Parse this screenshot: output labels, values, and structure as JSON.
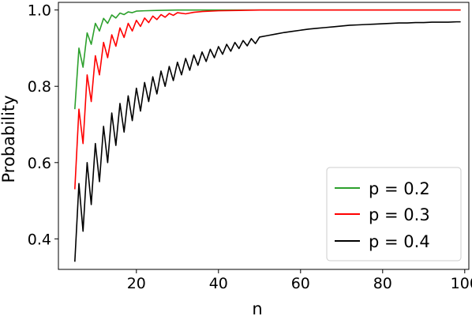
{
  "chart_data": {
    "type": "line",
    "title": "",
    "xlabel": "n",
    "ylabel": "Probability",
    "xlim": [
      1,
      101
    ],
    "ylim": [
      0.32,
      1.02
    ],
    "xticks": [
      20,
      40,
      60,
      80,
      100
    ],
    "yticks": [
      0.4,
      0.6,
      0.8,
      1.0
    ],
    "xtick_labels": [
      "20",
      "40",
      "60",
      "80",
      "100"
    ],
    "ytick_labels": [
      "0.4",
      "0.6",
      "0.8",
      "1.0"
    ],
    "grid": false,
    "legend_position": "lower-right",
    "series": [
      {
        "name": "p = 0.2",
        "color": "#2ca02c",
        "points": [
          [
            5,
            0.74
          ],
          [
            6,
            0.9
          ],
          [
            7,
            0.85
          ],
          [
            8,
            0.94
          ],
          [
            9,
            0.91
          ],
          [
            10,
            0.965
          ],
          [
            11,
            0.945
          ],
          [
            12,
            0.978
          ],
          [
            13,
            0.965
          ],
          [
            14,
            0.987
          ],
          [
            15,
            0.979
          ],
          [
            16,
            0.992
          ],
          [
            17,
            0.988
          ],
          [
            18,
            0.995
          ],
          [
            19,
            0.993
          ],
          [
            20,
            0.997
          ],
          [
            22,
            0.998
          ],
          [
            25,
            0.999
          ],
          [
            30,
            1.0
          ],
          [
            40,
            1.0
          ],
          [
            60,
            1.0
          ],
          [
            80,
            1.0
          ],
          [
            99,
            1.0
          ]
        ]
      },
      {
        "name": "p = 0.3",
        "color": "#ff0000",
        "points": [
          [
            5,
            0.53
          ],
          [
            6,
            0.74
          ],
          [
            7,
            0.65
          ],
          [
            8,
            0.83
          ],
          [
            9,
            0.76
          ],
          [
            10,
            0.88
          ],
          [
            11,
            0.83
          ],
          [
            12,
            0.915
          ],
          [
            13,
            0.875
          ],
          [
            14,
            0.935
          ],
          [
            15,
            0.905
          ],
          [
            16,
            0.953
          ],
          [
            17,
            0.928
          ],
          [
            18,
            0.965
          ],
          [
            19,
            0.945
          ],
          [
            20,
            0.973
          ],
          [
            21,
            0.957
          ],
          [
            22,
            0.979
          ],
          [
            23,
            0.967
          ],
          [
            24,
            0.984
          ],
          [
            25,
            0.975
          ],
          [
            26,
            0.988
          ],
          [
            27,
            0.981
          ],
          [
            28,
            0.991
          ],
          [
            29,
            0.986
          ],
          [
            30,
            0.993
          ],
          [
            32,
            0.99
          ],
          [
            34,
            0.994
          ],
          [
            36,
            0.996
          ],
          [
            40,
            0.998
          ],
          [
            45,
            0.999
          ],
          [
            50,
            1.0
          ],
          [
            60,
            1.0
          ],
          [
            80,
            1.0
          ],
          [
            99,
            1.0
          ]
        ]
      },
      {
        "name": "p = 0.4",
        "color": "#000000",
        "points": [
          [
            5,
            0.34
          ],
          [
            6,
            0.545
          ],
          [
            7,
            0.42
          ],
          [
            8,
            0.6
          ],
          [
            9,
            0.49
          ],
          [
            10,
            0.65
          ],
          [
            11,
            0.55
          ],
          [
            12,
            0.695
          ],
          [
            13,
            0.6
          ],
          [
            14,
            0.73
          ],
          [
            15,
            0.645
          ],
          [
            16,
            0.755
          ],
          [
            17,
            0.68
          ],
          [
            18,
            0.775
          ],
          [
            19,
            0.71
          ],
          [
            20,
            0.795
          ],
          [
            21,
            0.735
          ],
          [
            22,
            0.81
          ],
          [
            23,
            0.76
          ],
          [
            24,
            0.825
          ],
          [
            25,
            0.78
          ],
          [
            26,
            0.84
          ],
          [
            27,
            0.8
          ],
          [
            28,
            0.852
          ],
          [
            29,
            0.815
          ],
          [
            30,
            0.863
          ],
          [
            31,
            0.83
          ],
          [
            32,
            0.873
          ],
          [
            33,
            0.842
          ],
          [
            34,
            0.882
          ],
          [
            35,
            0.855
          ],
          [
            36,
            0.89
          ],
          [
            37,
            0.865
          ],
          [
            38,
            0.897
          ],
          [
            39,
            0.875
          ],
          [
            40,
            0.904
          ],
          [
            41,
            0.884
          ],
          [
            42,
            0.91
          ],
          [
            43,
            0.892
          ],
          [
            44,
            0.915
          ],
          [
            45,
            0.899
          ],
          [
            46,
            0.92
          ],
          [
            47,
            0.906
          ],
          [
            48,
            0.925
          ],
          [
            49,
            0.912
          ],
          [
            50,
            0.929
          ],
          [
            52,
            0.933
          ],
          [
            54,
            0.937
          ],
          [
            56,
            0.941
          ],
          [
            58,
            0.944
          ],
          [
            60,
            0.947
          ],
          [
            62,
            0.95
          ],
          [
            64,
            0.952
          ],
          [
            66,
            0.954
          ],
          [
            68,
            0.956
          ],
          [
            70,
            0.958
          ],
          [
            72,
            0.96
          ],
          [
            74,
            0.961
          ],
          [
            76,
            0.962
          ],
          [
            78,
            0.963
          ],
          [
            80,
            0.964
          ],
          [
            82,
            0.965
          ],
          [
            84,
            0.966
          ],
          [
            86,
            0.966
          ],
          [
            88,
            0.967
          ],
          [
            90,
            0.967
          ],
          [
            92,
            0.968
          ],
          [
            94,
            0.968
          ],
          [
            96,
            0.968
          ],
          [
            98,
            0.969
          ],
          [
            99,
            0.969
          ]
        ]
      }
    ]
  }
}
